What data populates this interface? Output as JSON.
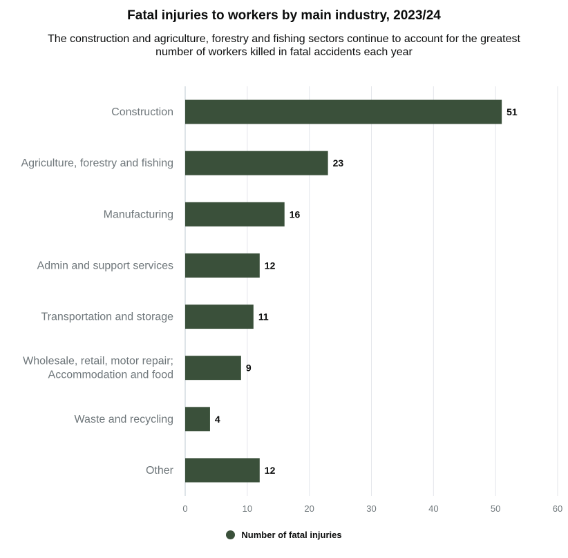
{
  "chart_data": {
    "type": "bar",
    "orientation": "horizontal",
    "title": "Fatal injuries to workers by main industry, 2023/24",
    "subtitle_lines": [
      "The construction and agriculture, forestry and fishing sectors continue to account for the greatest",
      "number of workers killed in fatal accidents each year"
    ],
    "categories": [
      [
        "Construction"
      ],
      [
        "Agriculture, forestry and fishing"
      ],
      [
        "Manufacturing"
      ],
      [
        "Admin and support services"
      ],
      [
        "Transportation and storage"
      ],
      [
        "Wholesale, retail, motor repair;",
        "Accommodation and food"
      ],
      [
        "Waste and recycling"
      ],
      [
        "Other"
      ]
    ],
    "series": [
      {
        "name": "Number of fatal injuries",
        "values": [
          51,
          23,
          16,
          12,
          11,
          9,
          4,
          12
        ],
        "color": "#3a503a"
      }
    ],
    "xlim": [
      0,
      60
    ],
    "xticks": [
      "0",
      "10",
      "20",
      "30",
      "40",
      "50",
      "60"
    ],
    "grid": true,
    "legend_position": "bottom"
  }
}
